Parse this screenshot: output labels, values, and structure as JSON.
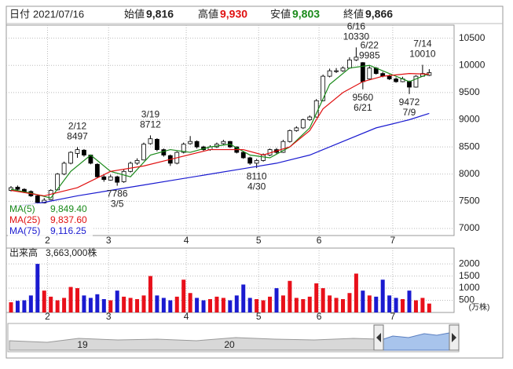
{
  "header": {
    "date_label": "日付",
    "date": "2021/07/16",
    "open_label": "始値",
    "open": "9,816",
    "high_label": "高値",
    "high": "9,930",
    "low_label": "安値",
    "low": "9,803",
    "close_label": "終値",
    "close": "9,866"
  },
  "chart_data": [
    {
      "type": "candlestick",
      "up_color": "#ffffff",
      "down_color": "#000000",
      "ylim": [
        6870,
        10740
      ],
      "yticks": [
        7000,
        7500,
        8000,
        8500,
        9000,
        9500,
        10000,
        10500
      ],
      "grid": true,
      "xticks": [
        {
          "value": 5.5,
          "label": "2"
        },
        {
          "value": 14.7,
          "label": "3"
        },
        {
          "value": 26.4,
          "label": "4"
        },
        {
          "value": 37.3,
          "label": "5"
        },
        {
          "value": 46.4,
          "label": "6"
        },
        {
          "value": 57.5,
          "label": "7"
        }
      ],
      "open": [
        7700,
        7760,
        7720,
        7680,
        7600,
        7470,
        7530,
        7710,
        8000,
        8200,
        8380,
        8440,
        8350,
        8180,
        7950,
        7890,
        7950,
        7860,
        8050,
        8200,
        8260,
        8560,
        8640,
        8450,
        8340,
        8200,
        8400,
        8560,
        8600,
        8500,
        8450,
        8500,
        8560,
        8600,
        8500,
        8400,
        8300,
        8200,
        8250,
        8350,
        8450,
        8400,
        8600,
        8800,
        8850,
        9000,
        9050,
        9350,
        9800,
        9900,
        9900,
        9950,
        10100,
        10050,
        9750,
        9950,
        9850,
        9800,
        9750,
        9700,
        9700,
        9600,
        9800,
        9816
      ],
      "high": [
        7780,
        7790,
        7740,
        7700,
        7620,
        7560,
        7720,
        8020,
        8230,
        8420,
        8497,
        8460,
        8360,
        8200,
        7990,
        7990,
        7970,
        8080,
        8230,
        8290,
        8580,
        8712,
        8660,
        8470,
        8360,
        8420,
        8580,
        8700,
        8620,
        8520,
        8530,
        8580,
        8630,
        8610,
        8510,
        8420,
        8320,
        8280,
        8380,
        8470,
        8480,
        8630,
        8820,
        8880,
        9020,
        9080,
        9380,
        9830,
        9940,
        9950,
        9980,
        10150,
        10330,
        10060,
        9985,
        9970,
        9880,
        9830,
        9780,
        9790,
        9720,
        9820,
        10010,
        9930
      ],
      "low": [
        7680,
        7700,
        7650,
        7580,
        7440,
        7450,
        7520,
        7700,
        7980,
        8180,
        8300,
        8320,
        8180,
        7930,
        7860,
        7880,
        7786,
        7840,
        8030,
        8170,
        8250,
        8540,
        8420,
        8320,
        8150,
        8180,
        8380,
        8540,
        8470,
        8420,
        8430,
        8480,
        8540,
        8480,
        8380,
        8280,
        8170,
        8110,
        8230,
        8330,
        8370,
        8390,
        8580,
        8780,
        8830,
        8980,
        9040,
        9340,
        9780,
        9860,
        9880,
        9940,
        10080,
        9560,
        9740,
        9830,
        9780,
        9730,
        9680,
        9690,
        9472,
        9590,
        9790,
        9803
      ],
      "close": [
        7750,
        7720,
        7680,
        7600,
        7480,
        7520,
        7700,
        8000,
        8200,
        8400,
        8450,
        8350,
        8200,
        7950,
        7900,
        7950,
        7850,
        8050,
        8200,
        8250,
        8550,
        8650,
        8450,
        8350,
        8200,
        8400,
        8550,
        8600,
        8500,
        8450,
        8500,
        8550,
        8600,
        8500,
        8400,
        8300,
        8200,
        8250,
        8350,
        8450,
        8400,
        8600,
        8800,
        8850,
        9000,
        9050,
        9350,
        9800,
        9900,
        9900,
        9950,
        10100,
        10150,
        9700,
        9950,
        9850,
        9800,
        9750,
        9700,
        9750,
        9600,
        9800,
        9850,
        9866
      ],
      "lines": [
        {
          "name": "MA(5)",
          "color": "#1a8a1a",
          "legend_value": "9,849.40",
          "x": [
            0,
            3,
            6,
            9,
            12,
            15,
            18,
            21,
            24,
            27,
            30,
            33,
            36,
            39,
            42,
            45,
            48,
            51,
            54,
            57,
            60,
            63
          ],
          "values": [
            7720,
            7650,
            7560,
            8050,
            8350,
            8050,
            7950,
            8350,
            8450,
            8400,
            8500,
            8550,
            8350,
            8300,
            8500,
            8850,
            9650,
            9950,
            10000,
            9850,
            9700,
            9849.4
          ]
        },
        {
          "name": "MA(25)",
          "color": "#e01010",
          "legend_value": "9,837.60",
          "x": [
            0,
            5,
            10,
            15,
            20,
            25,
            30,
            35,
            38,
            42,
            45,
            47,
            50,
            53,
            56,
            60,
            63
          ],
          "values": [
            7700,
            7600,
            7750,
            8050,
            8150,
            8300,
            8450,
            8450,
            8350,
            8500,
            8800,
            9200,
            9500,
            9700,
            9800,
            9850,
            9837.6
          ]
        },
        {
          "name": "MA(75)",
          "color": "#1a1ad0",
          "legend_value": "9,116.25",
          "x": [
            0,
            5,
            10,
            15,
            20,
            25,
            30,
            35,
            40,
            45,
            50,
            55,
            60,
            63
          ],
          "values": [
            7400,
            7480,
            7600,
            7700,
            7800,
            7900,
            8000,
            8100,
            8200,
            8350,
            8600,
            8850,
            9000,
            9116.25
          ]
        }
      ],
      "annotations": [
        {
          "label": "2/12",
          "value": 8497
        },
        {
          "label": "3/5",
          "value": 7786
        },
        {
          "label": "3/19",
          "value": 8712
        },
        {
          "label": "4/30",
          "value": 8110
        },
        {
          "label": "6/16",
          "value": 10330
        },
        {
          "label": "6/21",
          "value": 9560
        },
        {
          "label": "6/22",
          "value": 9985
        },
        {
          "label": "7/9",
          "value": 9472
        },
        {
          "label": "7/14",
          "value": 10010
        }
      ]
    },
    {
      "type": "bar",
      "title": "出来高",
      "title_value": "3,663,000株",
      "unit": "(万株)",
      "up_color": "#e8101a",
      "down_color": "#1a1ad0",
      "ylim": [
        0,
        2650
      ],
      "yticks": [
        500,
        1000,
        1500,
        2000
      ],
      "xticks": [
        {
          "value": 5.5,
          "label": "2"
        },
        {
          "value": 14.7,
          "label": "3"
        },
        {
          "value": 26.4,
          "label": "4"
        },
        {
          "value": 37.3,
          "label": "5"
        },
        {
          "value": 46.4,
          "label": "6"
        },
        {
          "value": 57.5,
          "label": "7"
        }
      ],
      "values": [
        420,
        480,
        500,
        700,
        2000,
        900,
        650,
        500,
        600,
        1050,
        1000,
        700,
        600,
        750,
        550,
        500,
        900,
        650,
        600,
        550,
        700,
        1500,
        700,
        600,
        500,
        650,
        1350,
        800,
        600,
        500,
        550,
        650,
        600,
        500,
        700,
        1150,
        600,
        550,
        500,
        650,
        1000,
        700,
        1300,
        600,
        550,
        650,
        1200,
        1000,
        700,
        600,
        550,
        800,
        1600,
        900,
        700,
        650,
        1350,
        700,
        600,
        550,
        900,
        500,
        600,
        366.3
      ]
    }
  ],
  "navigator": {
    "labels": [
      "19",
      "20"
    ]
  }
}
